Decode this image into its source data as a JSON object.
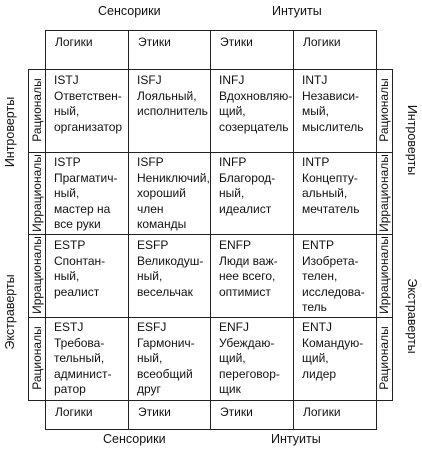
{
  "top_groups": [
    "Сенсорики",
    "Интуиты"
  ],
  "bottom_groups": [
    "Сенсорики",
    "Интуиты"
  ],
  "left_groups": [
    "Интроверты",
    "Экстраверты"
  ],
  "right_groups": [
    "Интроверты",
    "Экстраверты"
  ],
  "column_headers_top": [
    "Логики",
    "Этики",
    "Этики",
    "Логики"
  ],
  "column_headers_bottom": [
    "Логики",
    "Этики",
    "Этики",
    "Логики"
  ],
  "row_labels_left": [
    "Рационалы",
    "Иррационалы",
    "Иррационалы",
    "Рационалы"
  ],
  "row_labels_right": [
    "Рационалы",
    "Иррационалы",
    "Иррационалы",
    "Рационалы"
  ],
  "cells": [
    [
      {
        "code": "ISTJ",
        "desc": "Ответствен-\nный,\nорганизатор"
      },
      {
        "code": "ISFJ",
        "desc": "Лояльный,\nисполнитель"
      },
      {
        "code": "INFJ",
        "desc": "Вдохновляю-\nщий,\nсозерцатель"
      },
      {
        "code": "INTJ",
        "desc": "Независи-\nмый,\nмыслитель"
      }
    ],
    [
      {
        "code": "ISTP",
        "desc": "Прагматич-\nный,\nмастер на\nвсе руки"
      },
      {
        "code": "ISFP",
        "desc": "Нениключий,\nхороший\nчлен\nкоманды"
      },
      {
        "code": "INFP",
        "desc": "Благород-\nный,\nидеалист"
      },
      {
        "code": "INTP",
        "desc": "Концепту-\nальный,\nмечтатель"
      }
    ],
    [
      {
        "code": "ESTP",
        "desc": "Спонтан-\nный,\nреалист"
      },
      {
        "code": "ESFP",
        "desc": "Великодуш-\nный,\nвесельчак"
      },
      {
        "code": "ENFP",
        "desc": "Люди важ-\nнее всего,\nоптимист"
      },
      {
        "code": "ENTP",
        "desc": "Изобрета-\nтелен,\nисследова-\nтель"
      }
    ],
    [
      {
        "code": "ESTJ",
        "desc": "Требова-\nтельный,\nадминист-\nратор"
      },
      {
        "code": "ESFJ",
        "desc": "Гармонич-\nный,\nвсеобщий\nдруг"
      },
      {
        "code": "ENFJ",
        "desc": "Убеждаю-\nщий,\nпереговор-\nщик"
      },
      {
        "code": "ENTJ",
        "desc": "Командую-\nщий,\nлидер"
      }
    ]
  ]
}
